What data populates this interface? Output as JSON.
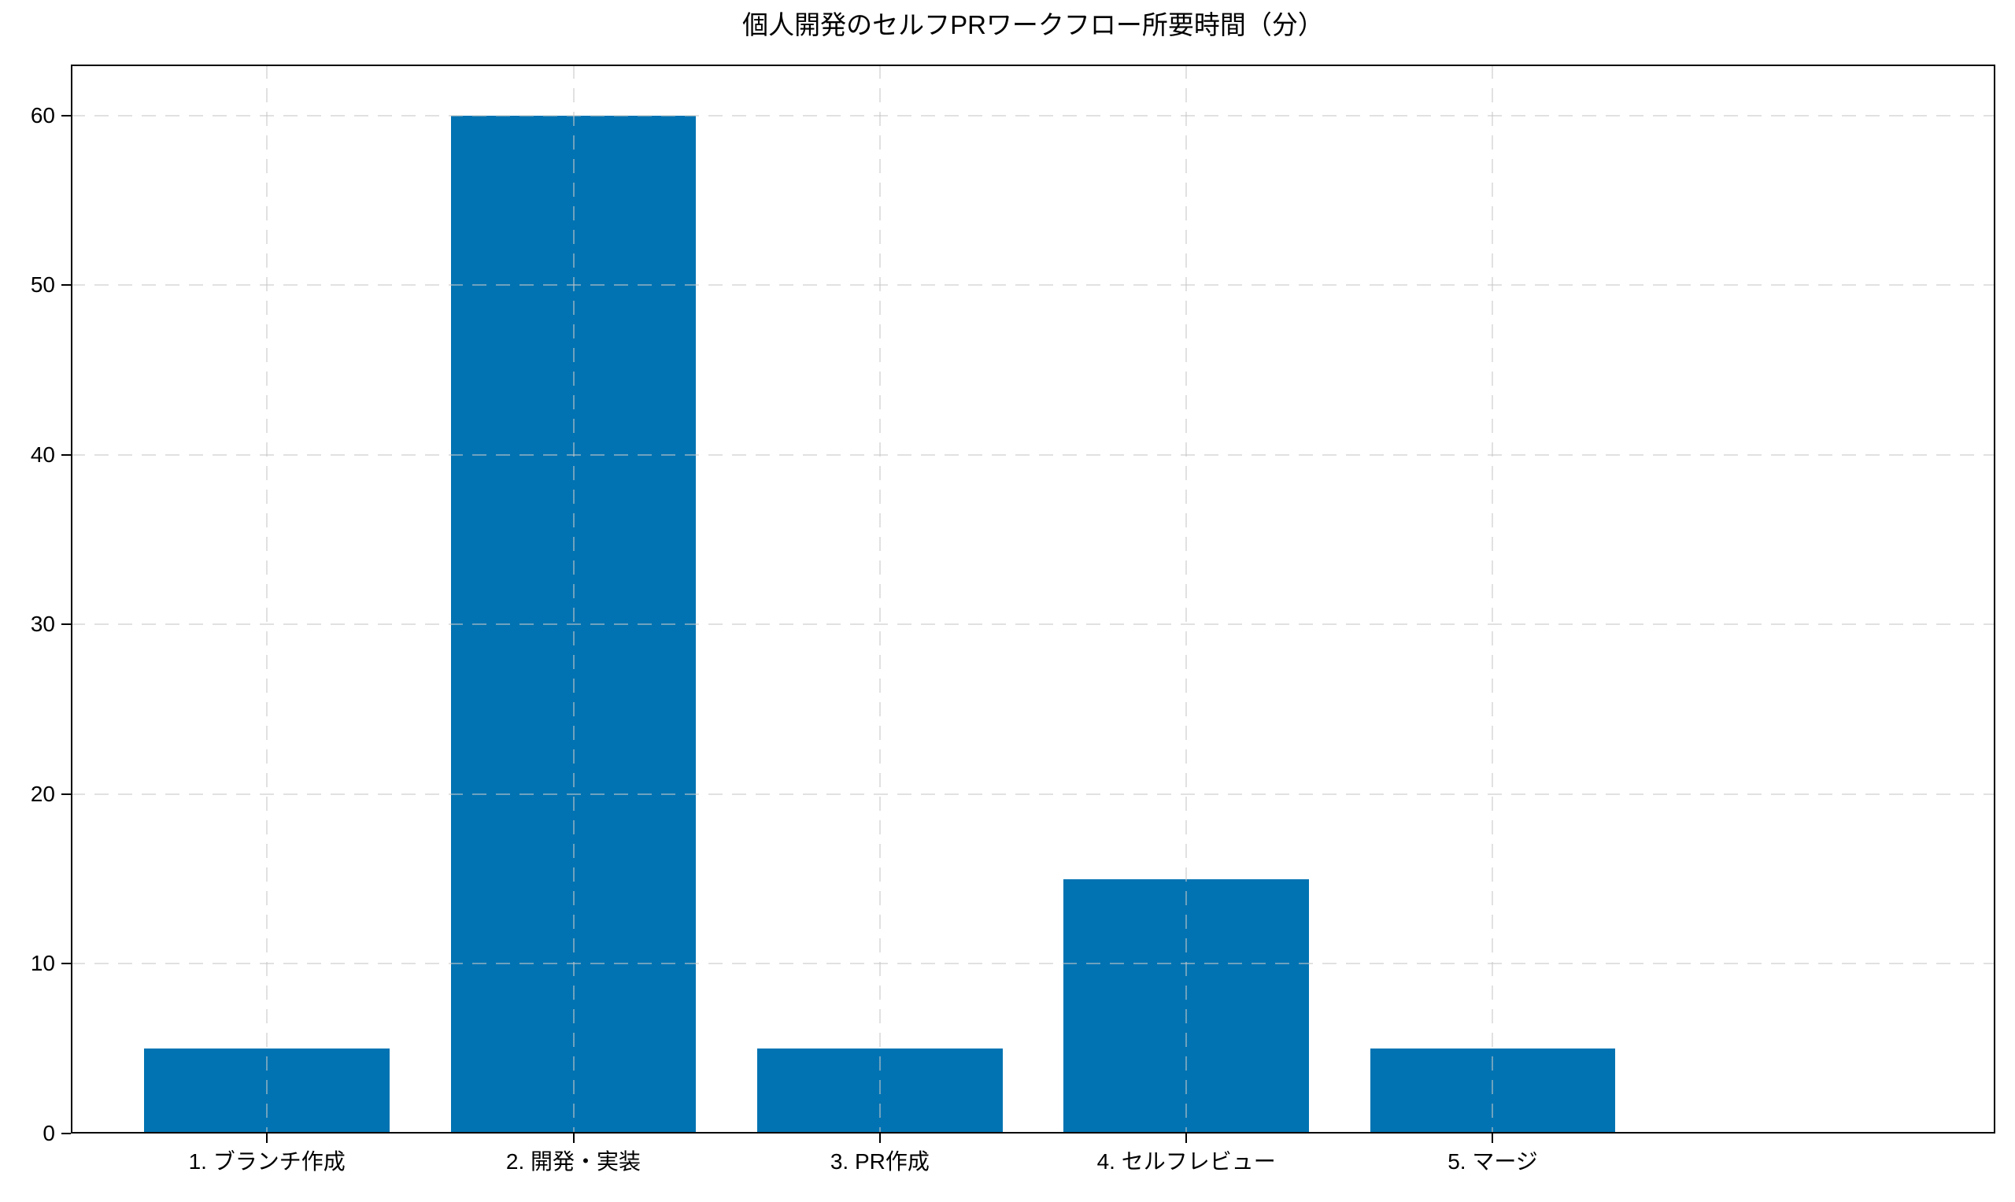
{
  "chart_data": {
    "type": "bar",
    "title": "個人開発のセルフPRワークフロー所要時間（分）",
    "categories": [
      "1. ブランチ作成",
      "2. 開発・実装",
      "3. PR作成",
      "4. セルフレビュー",
      "5. マージ"
    ],
    "values": [
      5,
      60,
      5,
      15,
      5
    ],
    "xlabel": "",
    "ylabel": "",
    "ylim": [
      0,
      63
    ],
    "yticks": [
      0,
      10,
      20,
      30,
      40,
      50,
      60
    ],
    "bar_color": "#0173b2",
    "grid": true,
    "grid_style": "dashed",
    "grid_color": "rgba(200,200,200,0.55)",
    "grid_over_bars": true,
    "legend": "none",
    "bar_width_ratio": 0.8,
    "x_margin": 0.64
  }
}
